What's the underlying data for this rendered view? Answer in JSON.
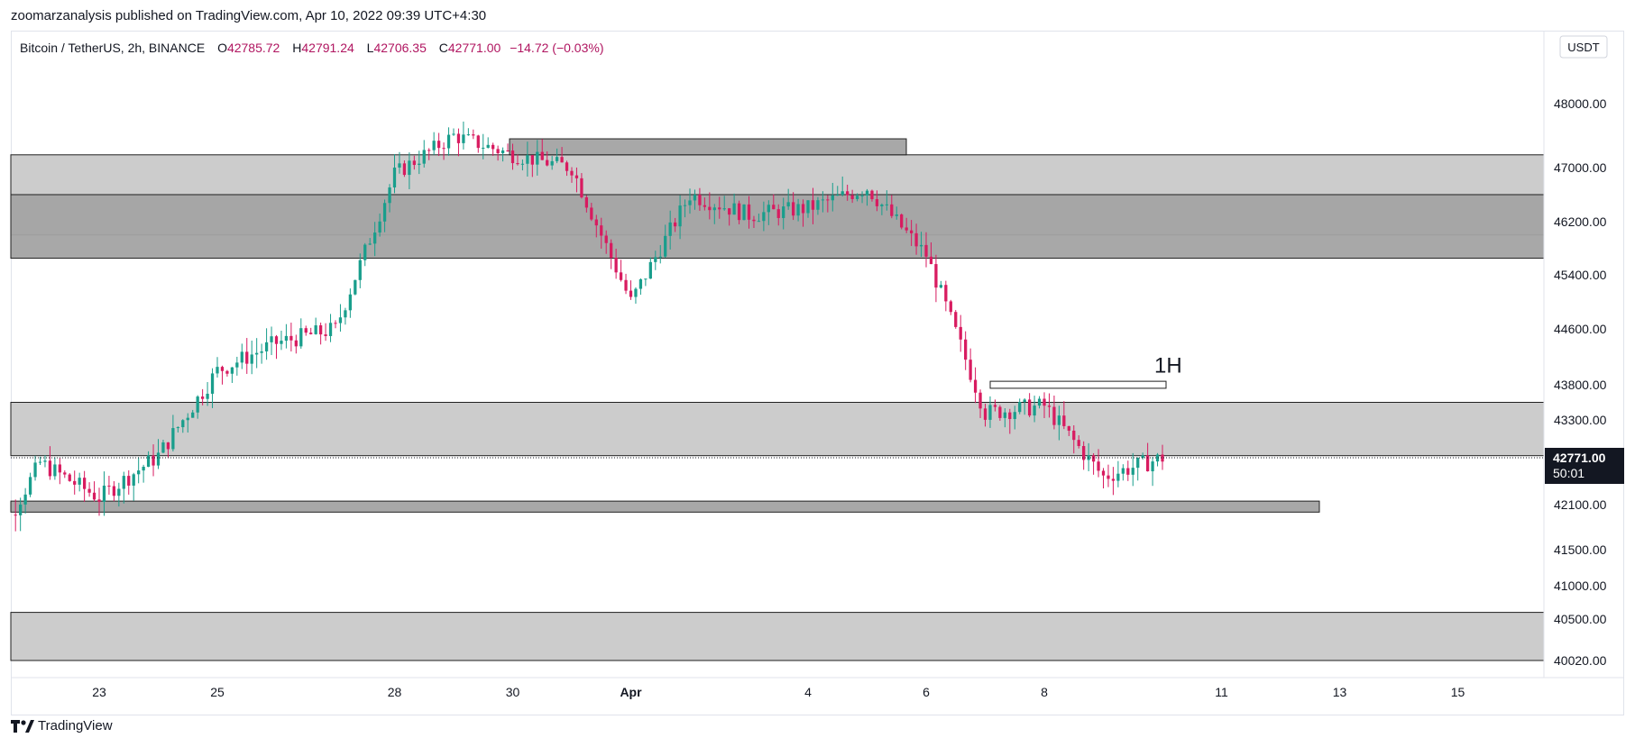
{
  "header": {
    "publisher_line": "zoomarzanalysis published on TradingView.com, Apr 10, 2022 09:39 UTC+4:30"
  },
  "legend": {
    "symbol": "Bitcoin / TetherUS, 2h, BINANCE",
    "open_label": "O",
    "open": "42785.72",
    "high_label": "H",
    "high": "42791.24",
    "low_label": "L",
    "low": "42706.35",
    "close_label": "C",
    "close": "42771.00",
    "change": "−14.72 (−0.03%)"
  },
  "price_scale": {
    "currency": "USDT",
    "last_price": "42771.00",
    "countdown": "50:01"
  },
  "footer": {
    "brand": "TradingView"
  },
  "colors": {
    "up": "#26a69a",
    "down": "#ef5350",
    "up_body": "#199e8c",
    "down_body": "#d81b60",
    "zone_light": "#c9c9c9",
    "zone_dark": "#a3a3a3",
    "zone_border": "#1f1f1f"
  },
  "chart_data": {
    "type": "candlestick",
    "title": "",
    "symbol": "BTCUSDT",
    "timeframe": "2h",
    "y_axis": {
      "scale": "non-linear",
      "ticks": [
        48000,
        47000,
        46200,
        45400,
        44600,
        43800,
        43300,
        42100,
        41500,
        41000,
        40500,
        40020
      ]
    },
    "x_axis": {
      "ticks": [
        "23",
        "25",
        "28",
        "30",
        "Apr",
        "4",
        "6",
        "8",
        "11",
        "13",
        "15"
      ]
    },
    "price_series": [
      [
        "Mar 21",
        41200
      ],
      [
        "Mar 22",
        42700
      ],
      [
        "Mar 23",
        42200
      ],
      [
        "Mar 24",
        42800
      ],
      [
        "Mar 25",
        44000
      ],
      [
        "Mar 26",
        44400
      ],
      [
        "Mar 27",
        44600
      ],
      [
        "Mar 28",
        46900
      ],
      [
        "Mar 29",
        47500
      ],
      [
        "Mar 30",
        47200
      ],
      [
        "Mar 31",
        47000
      ],
      [
        "Apr 1",
        45000
      ],
      [
        "Apr 2",
        46600
      ],
      [
        "Apr 3",
        46300
      ],
      [
        "Apr 4",
        46400
      ],
      [
        "Apr 5",
        46700
      ],
      [
        "Apr 6",
        45700
      ],
      [
        "Apr 7",
        43400
      ],
      [
        "Apr 8",
        43500
      ],
      [
        "Apr 9",
        42500
      ],
      [
        "Apr 10",
        42771
      ]
    ],
    "zones": [
      {
        "kind": "light",
        "from": 46000,
        "to": 47200
      },
      {
        "kind": "dark",
        "from": 45650,
        "to": 46600
      },
      {
        "kind": "dark",
        "from": 47200,
        "to": 47450
      },
      {
        "kind": "light",
        "from": 42800,
        "to": 43550
      },
      {
        "kind": "dark",
        "from": 42000,
        "to": 42150
      },
      {
        "kind": "light",
        "from": 39900,
        "to": 40600
      },
      {
        "kind": "outline",
        "from": 43750,
        "to": 43850
      }
    ],
    "annotations": [
      {
        "text": "1H",
        "price": 43900,
        "date": "Apr 8"
      }
    ],
    "last_price": 42771.0
  }
}
